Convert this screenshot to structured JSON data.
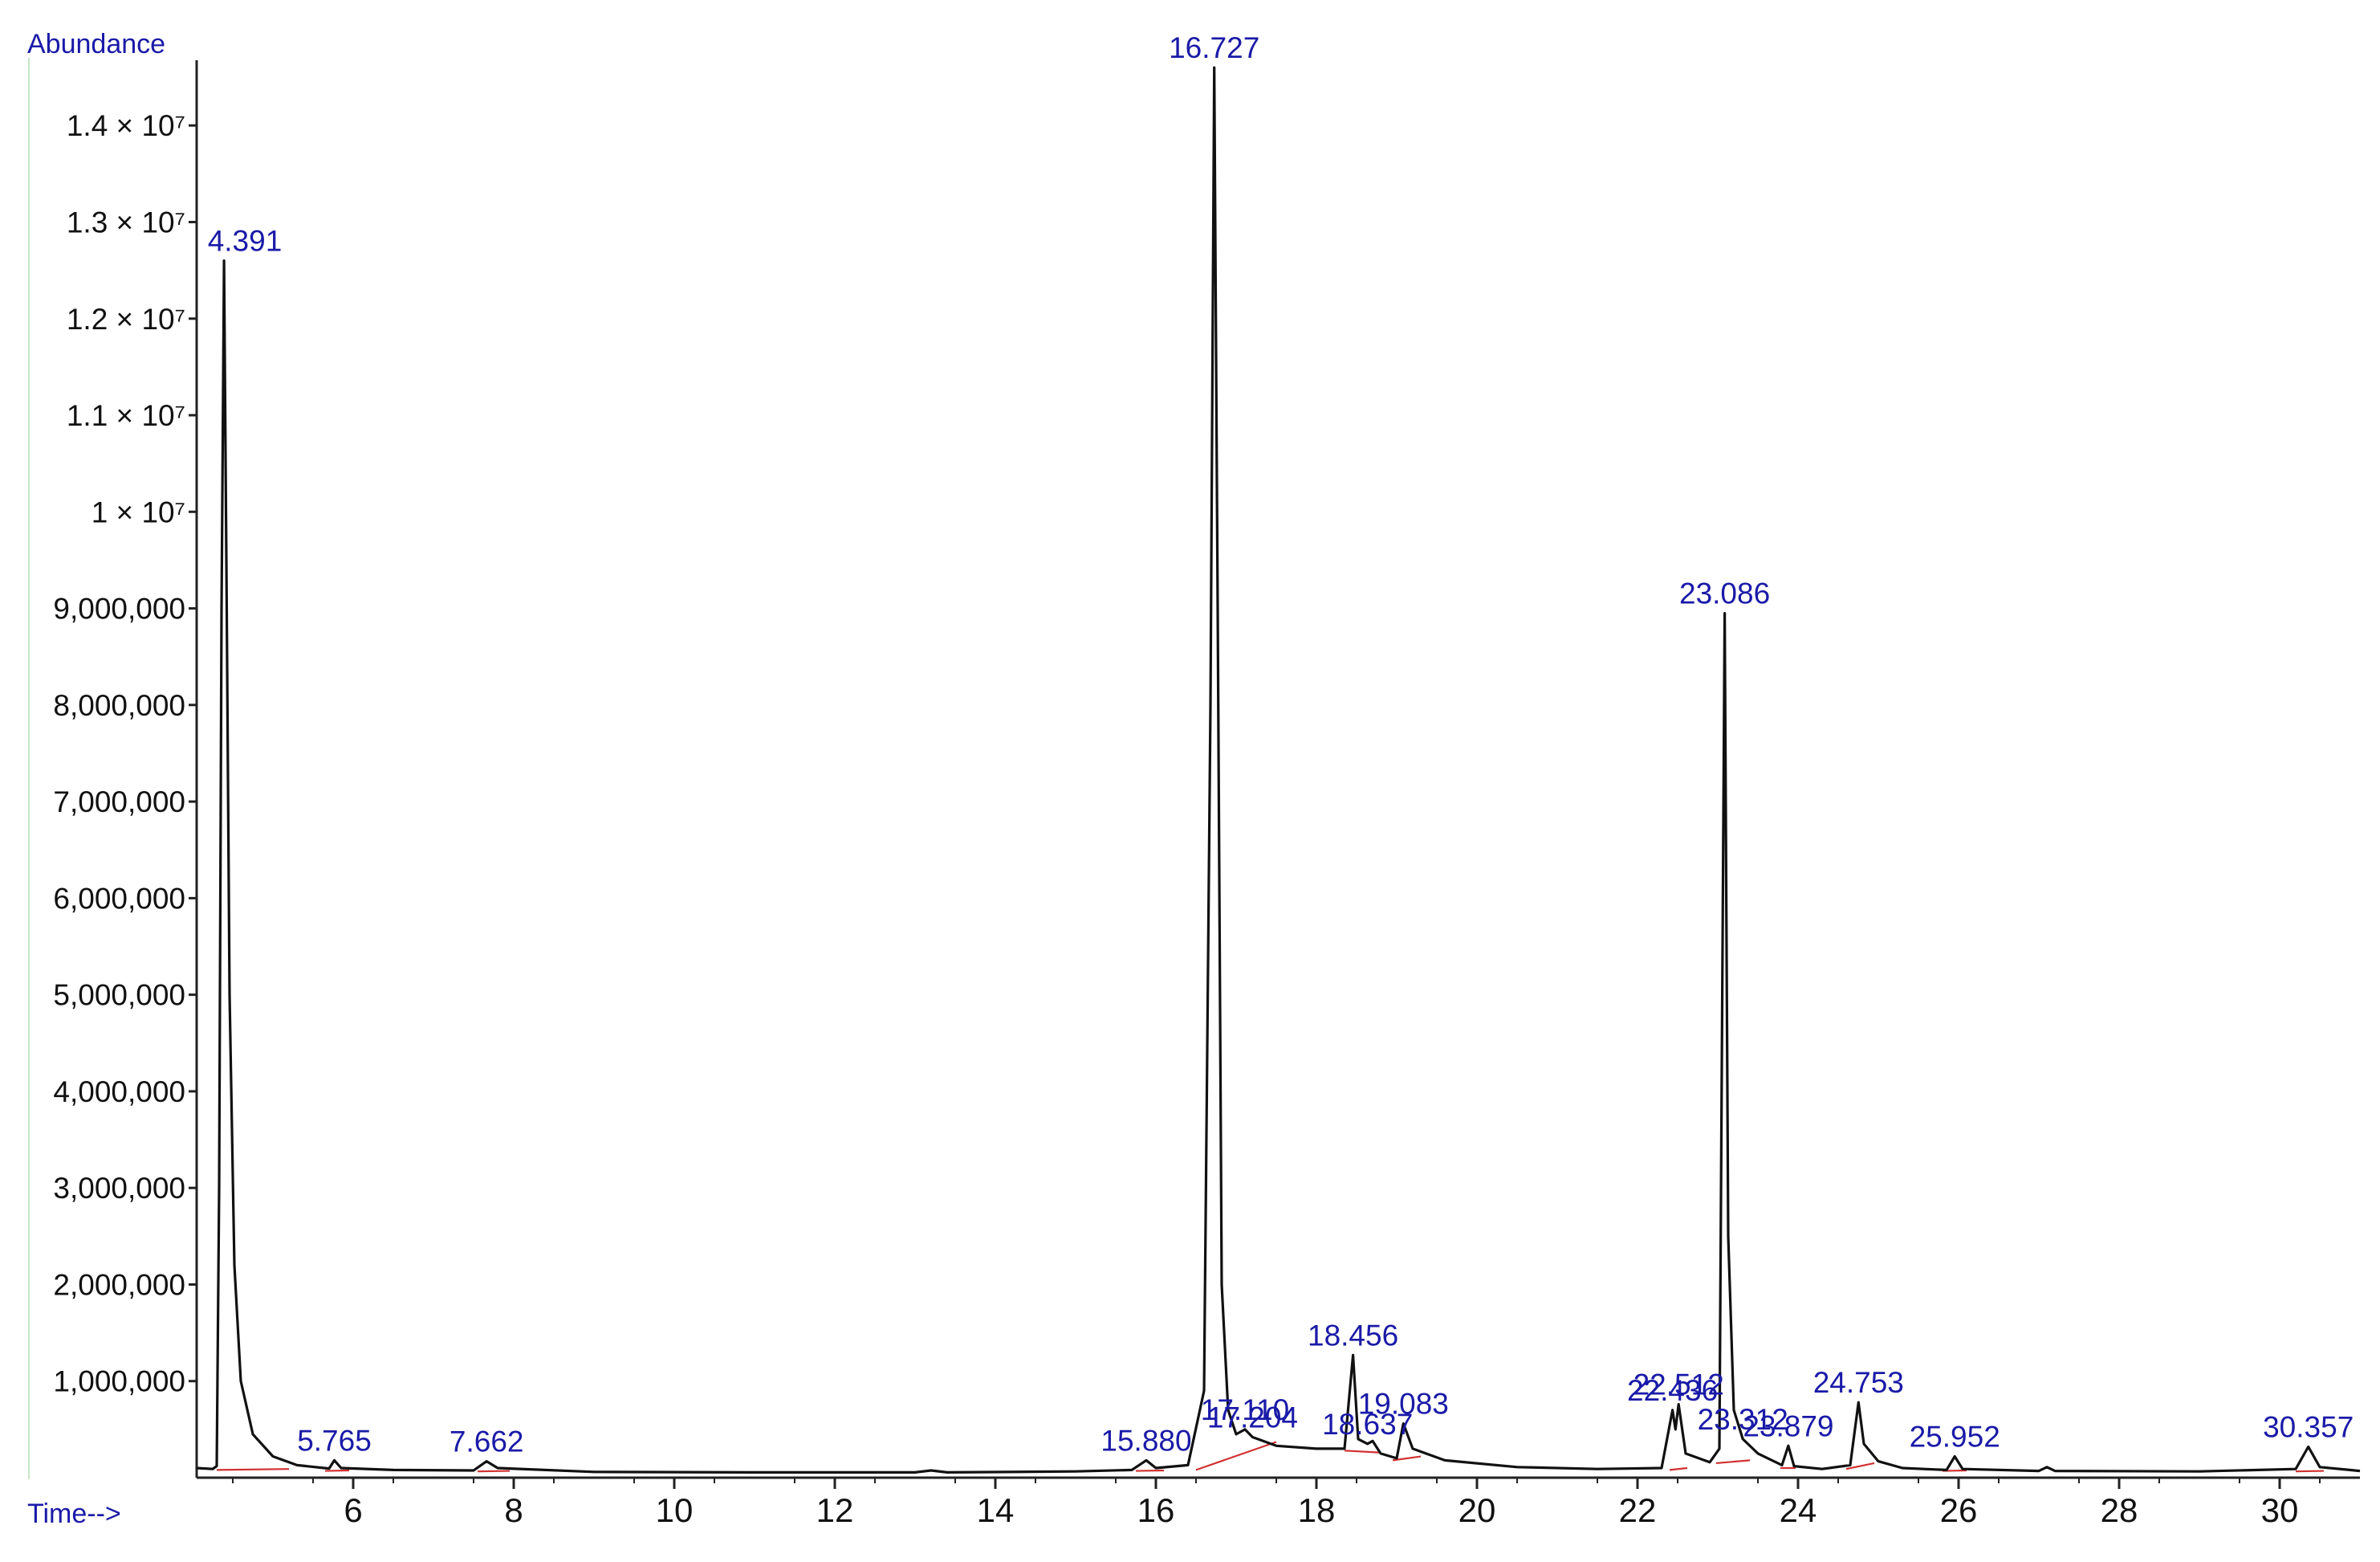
{
  "chart_data": {
    "type": "line",
    "ylabel": "Abundance",
    "xlabel": "Time-->",
    "xlim": [
      4.05,
      31.0
    ],
    "ylim": [
      0,
      14800000
    ],
    "x_ticks": [
      6,
      8,
      10,
      12,
      14,
      16,
      18,
      20,
      22,
      24,
      26,
      28,
      30
    ],
    "y_ticks": [
      {
        "value": 1000000,
        "label": "1,000,000"
      },
      {
        "value": 2000000,
        "label": "2,000,000"
      },
      {
        "value": 3000000,
        "label": "3,000,000"
      },
      {
        "value": 4000000,
        "label": "4,000,000"
      },
      {
        "value": 5000000,
        "label": "5,000,000"
      },
      {
        "value": 6000000,
        "label": "6,000,000"
      },
      {
        "value": 7000000,
        "label": "7,000,000"
      },
      {
        "value": 8000000,
        "label": "8,000,000"
      },
      {
        "value": 9000000,
        "label": "9,000,000"
      },
      {
        "value": 10000000,
        "label": "1 × 10⁷"
      },
      {
        "value": 11000000,
        "label": "1.1 × 10⁷"
      },
      {
        "value": 12000000,
        "label": "1.2 × 10⁷"
      },
      {
        "value": 13000000,
        "label": "1.3 × 10⁷"
      },
      {
        "value": 14000000,
        "label": "1.4 × 10⁷"
      }
    ],
    "series": [
      {
        "color": "#111111",
        "points": [
          [
            4.05,
            100000
          ],
          [
            4.25,
            90000
          ],
          [
            4.3,
            120000
          ],
          [
            4.33,
            3000000
          ],
          [
            4.36,
            9000000
          ],
          [
            4.391,
            12600000
          ],
          [
            4.42,
            9500000
          ],
          [
            4.46,
            5000000
          ],
          [
            4.52,
            2200000
          ],
          [
            4.6,
            1000000
          ],
          [
            4.75,
            450000
          ],
          [
            5.0,
            220000
          ],
          [
            5.3,
            130000
          ],
          [
            5.7,
            95000
          ],
          [
            5.765,
            180000
          ],
          [
            5.85,
            100000
          ],
          [
            6.5,
            80000
          ],
          [
            7.5,
            75000
          ],
          [
            7.662,
            170000
          ],
          [
            7.8,
            100000
          ],
          [
            9.0,
            60000
          ],
          [
            11.0,
            55000
          ],
          [
            13.0,
            55000
          ],
          [
            13.2,
            75000
          ],
          [
            13.4,
            55000
          ],
          [
            15.0,
            65000
          ],
          [
            15.7,
            80000
          ],
          [
            15.88,
            180000
          ],
          [
            16.0,
            100000
          ],
          [
            16.4,
            130000
          ],
          [
            16.6,
            900000
          ],
          [
            16.68,
            8000000
          ],
          [
            16.727,
            14600000
          ],
          [
            16.77,
            9000000
          ],
          [
            16.82,
            2000000
          ],
          [
            16.9,
            700000
          ],
          [
            17.0,
            450000
          ],
          [
            17.11,
            500000
          ],
          [
            17.204,
            420000
          ],
          [
            17.5,
            330000
          ],
          [
            18.0,
            300000
          ],
          [
            18.35,
            300000
          ],
          [
            18.456,
            1270000
          ],
          [
            18.52,
            400000
          ],
          [
            18.637,
            350000
          ],
          [
            18.7,
            380000
          ],
          [
            18.8,
            250000
          ],
          [
            19.0,
            200000
          ],
          [
            19.083,
            560000
          ],
          [
            19.2,
            300000
          ],
          [
            19.6,
            180000
          ],
          [
            20.5,
            110000
          ],
          [
            21.5,
            90000
          ],
          [
            22.3,
            100000
          ],
          [
            22.436,
            700000
          ],
          [
            22.473,
            500000
          ],
          [
            22.512,
            760000
          ],
          [
            22.6,
            250000
          ],
          [
            22.9,
            160000
          ],
          [
            23.02,
            300000
          ],
          [
            23.086,
            8950000
          ],
          [
            23.13,
            2500000
          ],
          [
            23.2,
            700000
          ],
          [
            23.312,
            400000
          ],
          [
            23.5,
            250000
          ],
          [
            23.8,
            130000
          ],
          [
            23.879,
            330000
          ],
          [
            23.95,
            120000
          ],
          [
            24.3,
            90000
          ],
          [
            24.65,
            130000
          ],
          [
            24.753,
            780000
          ],
          [
            24.82,
            350000
          ],
          [
            25.0,
            170000
          ],
          [
            25.3,
            100000
          ],
          [
            25.85,
            80000
          ],
          [
            25.952,
            220000
          ],
          [
            26.05,
            90000
          ],
          [
            27.0,
            70000
          ],
          [
            27.1,
            110000
          ],
          [
            27.2,
            70000
          ],
          [
            29.0,
            65000
          ],
          [
            30.2,
            90000
          ],
          [
            30.357,
            320000
          ],
          [
            30.5,
            110000
          ],
          [
            31.0,
            70000
          ]
        ]
      }
    ],
    "baselines": [
      [
        [
          4.3,
          80000
        ],
        [
          5.2,
          90000
        ]
      ],
      [
        [
          5.65,
          70000
        ],
        [
          5.95,
          75000
        ]
      ],
      [
        [
          7.55,
          65000
        ],
        [
          7.95,
          70000
        ]
      ],
      [
        [
          15.75,
          70000
        ],
        [
          16.1,
          75000
        ]
      ],
      [
        [
          16.5,
          80000
        ],
        [
          17.5,
          370000
        ]
      ],
      [
        [
          18.35,
          280000
        ],
        [
          18.8,
          260000
        ]
      ],
      [
        [
          18.95,
          180000
        ],
        [
          19.3,
          220000
        ]
      ],
      [
        [
          22.4,
          80000
        ],
        [
          22.62,
          100000
        ]
      ],
      [
        [
          22.98,
          150000
        ],
        [
          23.4,
          180000
        ]
      ],
      [
        [
          23.78,
          100000
        ],
        [
          23.97,
          100000
        ]
      ],
      [
        [
          24.6,
          90000
        ],
        [
          24.95,
          150000
        ]
      ],
      [
        [
          25.8,
          70000
        ],
        [
          26.1,
          75000
        ]
      ],
      [
        [
          30.2,
          65000
        ],
        [
          30.55,
          70000
        ]
      ]
    ],
    "peak_labels": [
      {
        "text": "4.391",
        "x": 4.391,
        "y": 12600000
      },
      {
        "text": "5.765",
        "x": 5.765,
        "y": 180000
      },
      {
        "text": "7.662",
        "x": 7.662,
        "y": 170000
      },
      {
        "text": "15.880",
        "x": 15.88,
        "y": 180000
      },
      {
        "text": "16.727",
        "x": 16.727,
        "y": 14600000
      },
      {
        "text": "17.110",
        "x": 17.11,
        "y": 500000
      },
      {
        "text": "17.204",
        "x": 17.204,
        "y": 420000
      },
      {
        "text": "18.456",
        "x": 18.456,
        "y": 1270000
      },
      {
        "text": "18.637",
        "x": 18.637,
        "y": 350000
      },
      {
        "text": "19.083",
        "x": 19.083,
        "y": 560000
      },
      {
        "text": "22.436",
        "x": 22.436,
        "y": 700000
      },
      {
        "text": "22.512",
        "x": 22.512,
        "y": 760000
      },
      {
        "text": "23.086",
        "x": 23.086,
        "y": 8950000
      },
      {
        "text": "23.312",
        "x": 23.312,
        "y": 400000
      },
      {
        "text": "23.879",
        "x": 23.879,
        "y": 330000
      },
      {
        "text": "24.753",
        "x": 24.753,
        "y": 780000
      },
      {
        "text": "25.952",
        "x": 25.952,
        "y": 220000
      },
      {
        "text": "30.357",
        "x": 30.357,
        "y": 320000
      }
    ],
    "colors": {
      "trace": "#111111",
      "baseline": "#d23030",
      "labels": "#1a1aa8"
    },
    "grid": false
  }
}
